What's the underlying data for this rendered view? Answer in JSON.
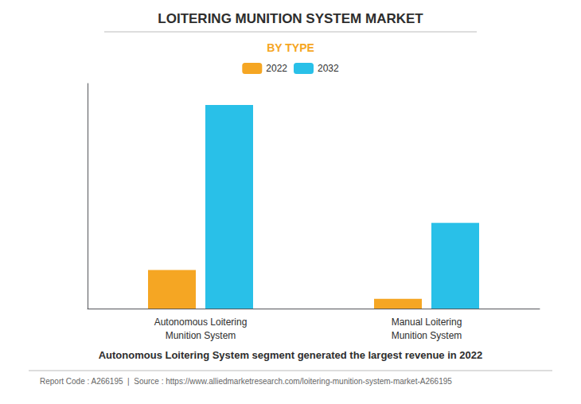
{
  "chart_data": {
    "type": "bar",
    "title": "LOITERING MUNITION SYSTEM MARKET",
    "subtitle": "BY TYPE",
    "categories": [
      "Autonomous Loitering\nMunition System",
      "Manual Loitering\nMunition System"
    ],
    "series": [
      {
        "name": "2022",
        "color": "#F5A623",
        "values": [
          0.18,
          0.045
        ]
      },
      {
        "name": "2032",
        "color": "#29C0E8",
        "values": [
          0.95,
          0.4
        ]
      }
    ],
    "ylim": [
      0,
      1.05
    ],
    "grid": false,
    "tick_labels": "x",
    "legend": "top",
    "annotations": [
      "Autonomous Loitering System segment generated the largest revenue in 2022",
      "Report Code : A266195  |  Source : https://www.alliedmarketresearch.com/loitering-munition-system-market-A266195"
    ]
  }
}
